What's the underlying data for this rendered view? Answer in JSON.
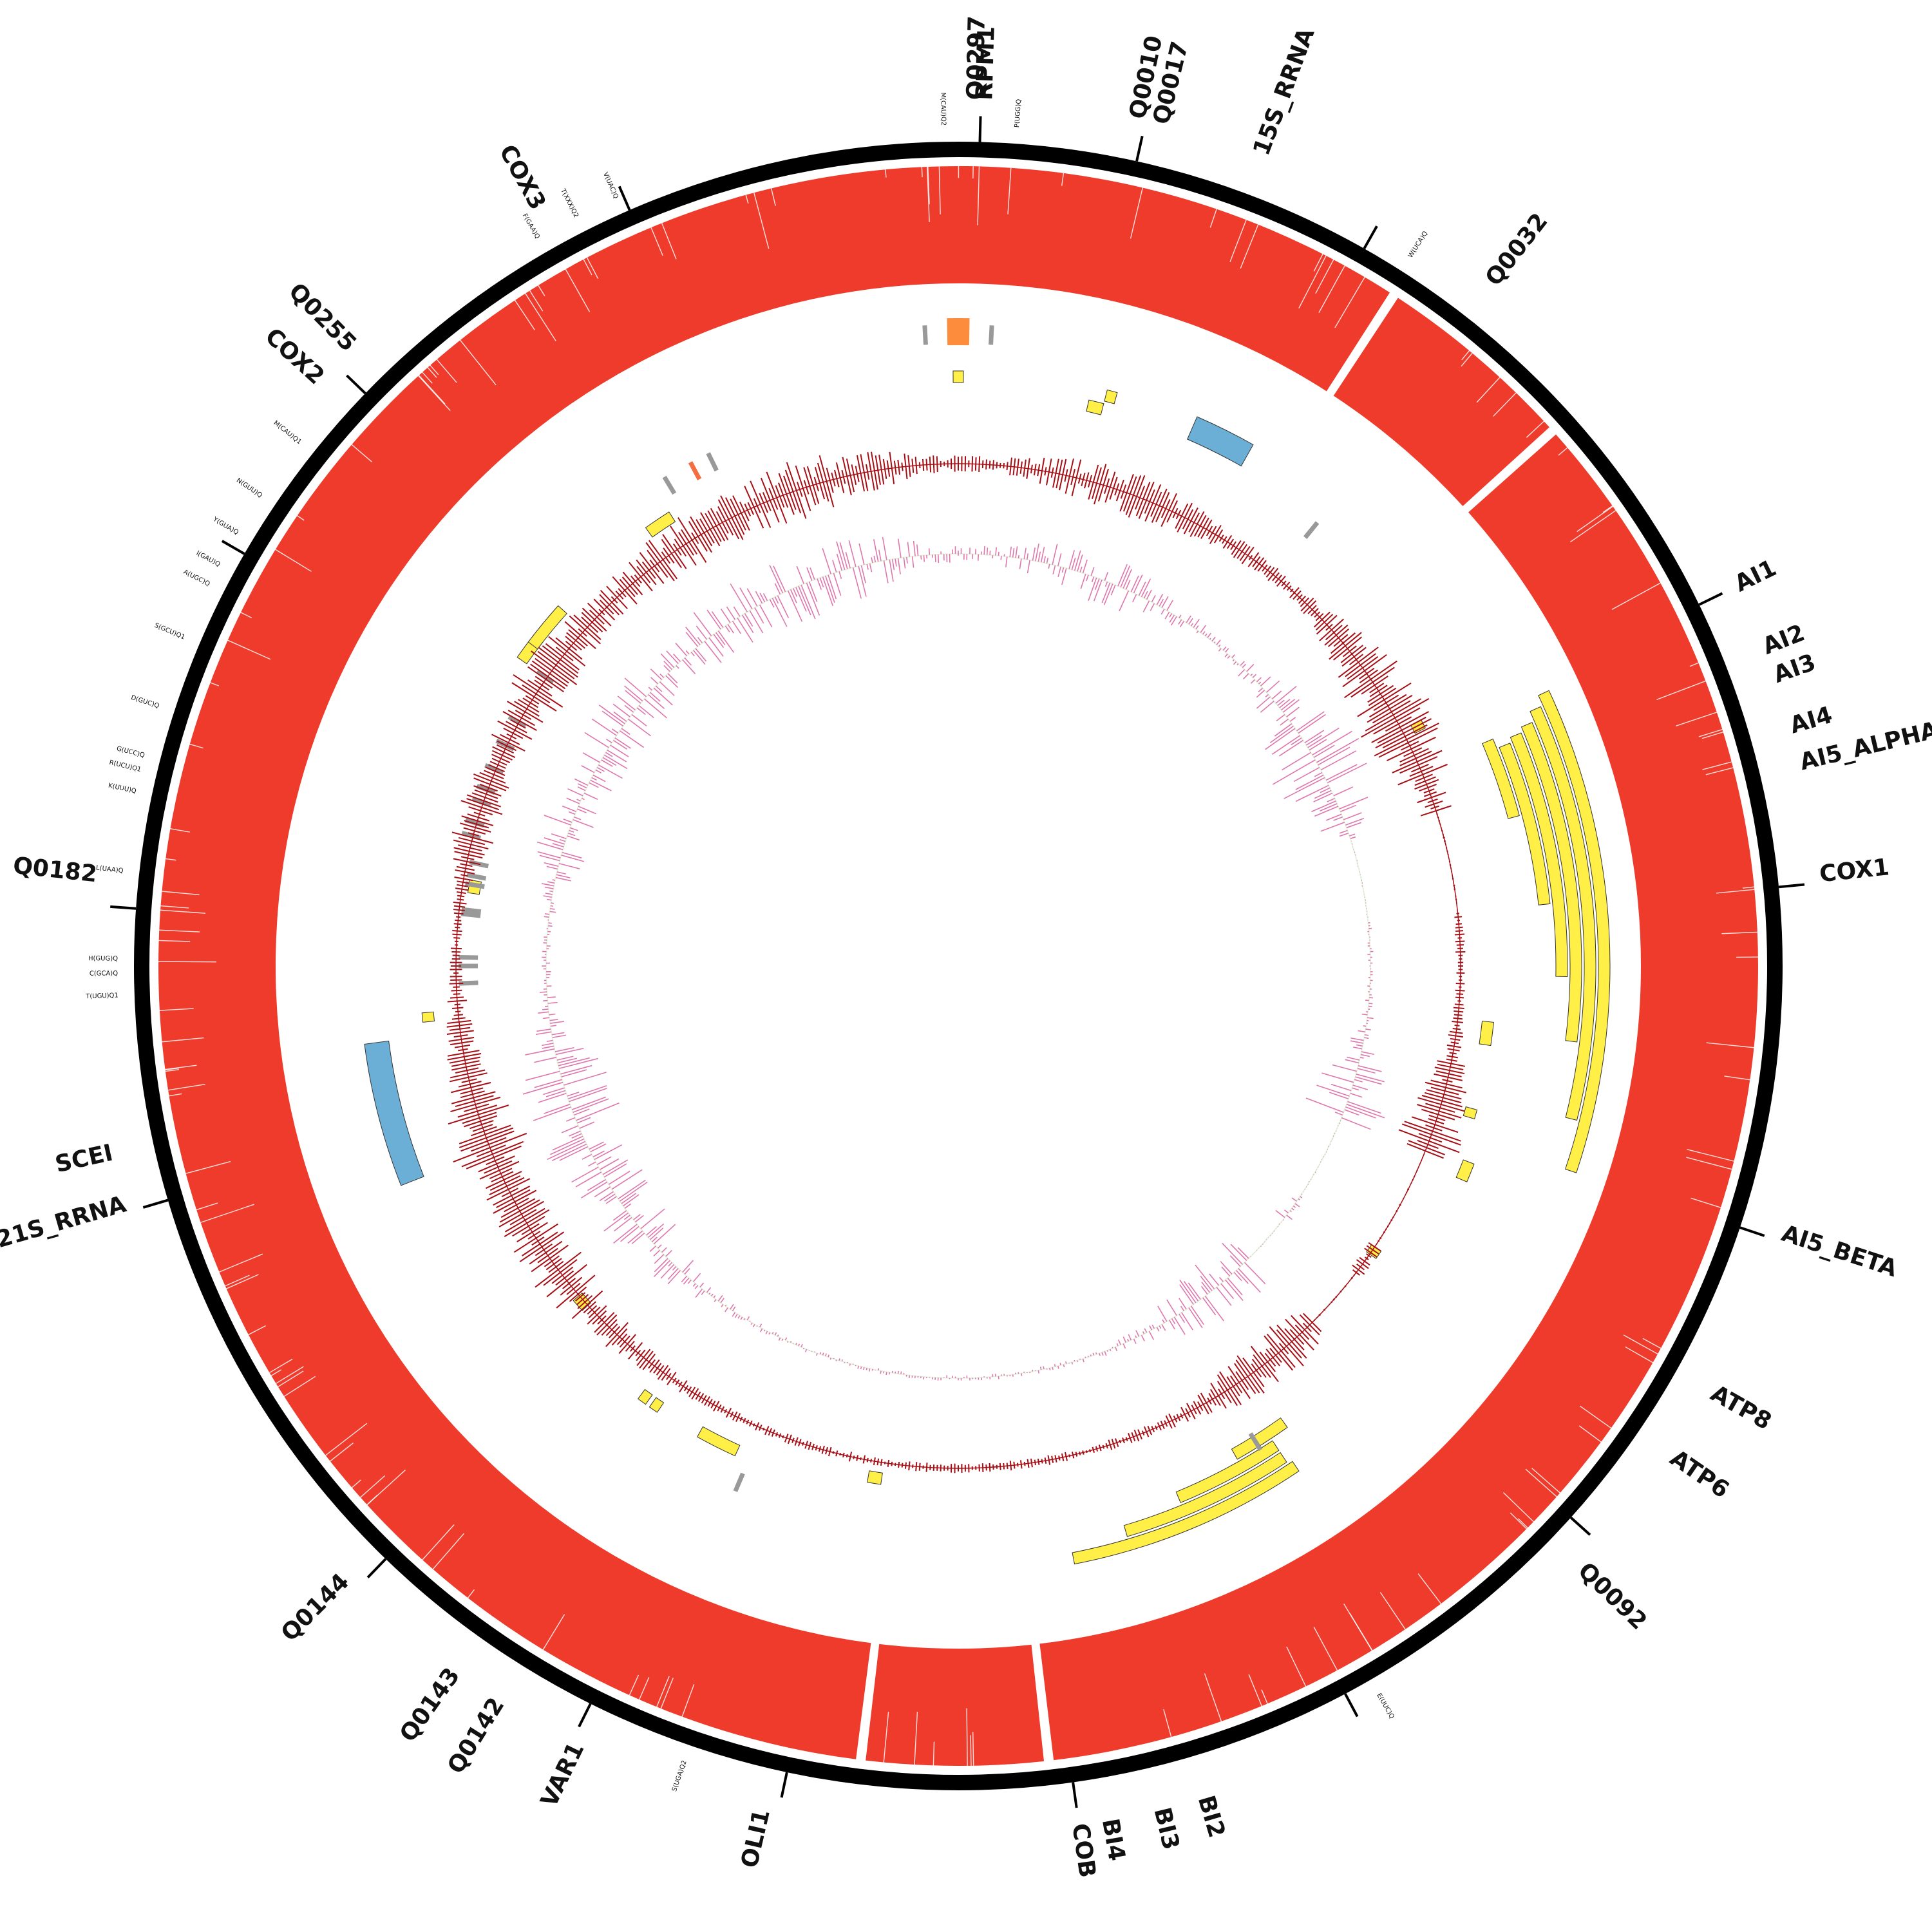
{
  "colors": {
    "backbone": "#000000",
    "coverage": "#ef3b2c",
    "intron": "#ffef47",
    "rrna": "#6baed6",
    "orf_highlight": "#fd8d3c",
    "trna_mark": "#999999",
    "trna_highlight": "#f46d43",
    "gc_skew": "#a50f15",
    "gc_content": "#de77ae",
    "gc_fill": "#e5f5e0"
  },
  "gene_labels": [
    {
      "text": "Q0297",
      "angle": 1.2
    },
    {
      "text": "RPM1",
      "angle": 1.8
    },
    {
      "text": "Q0010",
      "angle": 12.0
    },
    {
      "text": "Q0017",
      "angle": 13.6
    },
    {
      "text": "15S_RRNA",
      "angle": 20.5
    },
    {
      "text": "Q0032",
      "angle": 38.0
    },
    {
      "text": "AI1",
      "angle": 64.0
    },
    {
      "text": "AI2",
      "angle": 68.5
    },
    {
      "text": "AI3",
      "angle": 70.5
    },
    {
      "text": "AI4",
      "angle": 74.0
    },
    {
      "text": "AI5_ALPHA",
      "angle": 76.5
    },
    {
      "text": "COX1",
      "angle": 84.0
    },
    {
      "text": "AI5_BETA",
      "angle": 108.0
    },
    {
      "text": "ATP8",
      "angle": 119.5
    },
    {
      "text": "ATP6",
      "angle": 124.5
    },
    {
      "text": "Q0092",
      "angle": 134.0
    },
    {
      "text": "BI2",
      "angle": 163.5
    },
    {
      "text": "BI3",
      "angle": 166.5
    },
    {
      "text": "BI4",
      "angle": 170.0
    },
    {
      "text": "COB",
      "angle": 172.0
    },
    {
      "text": "OLI1",
      "angle": 193.0
    },
    {
      "text": "VAR1",
      "angle": 206.0
    },
    {
      "text": "Q0142",
      "angle": 212.0
    },
    {
      "text": "Q0143",
      "angle": 215.5
    },
    {
      "text": "Q0144",
      "angle": 225.0
    },
    {
      "text": "21S_RRNA",
      "angle": 254.0
    },
    {
      "text": "SCEI",
      "angle": 257.5
    },
    {
      "text": "Q0182",
      "angle": 276.0
    },
    {
      "text": "COX2",
      "angle": 312.5
    },
    {
      "text": "Q0255",
      "angle": 315.5
    },
    {
      "text": "COX3",
      "angle": 331.0
    }
  ],
  "trna_labels": [
    {
      "text": "M(CAU)Q2",
      "angle": 359.0
    },
    {
      "text": "P(UGG)Q",
      "angle": 4.0
    },
    {
      "text": "W(UCA)Q",
      "angle": 32.5
    },
    {
      "text": "E(UUC)Q",
      "angle": 150.0
    },
    {
      "text": "S(UGA)Q2",
      "angle": 199.0
    },
    {
      "text": "T(UGU)Q1",
      "angle": 268.0
    },
    {
      "text": "C(GCA)Q",
      "angle": 269.5
    },
    {
      "text": "H(GUG)Q",
      "angle": 270.5
    },
    {
      "text": "L(UAA)Q",
      "angle": 276.5
    },
    {
      "text": "K(UUU)Q",
      "angle": 282.0
    },
    {
      "text": "R(UCU)Q1",
      "angle": 283.5
    },
    {
      "text": "G(UCC)Q",
      "angle": 284.5
    },
    {
      "text": "D(GUC)Q",
      "angle": 288.0
    },
    {
      "text": "S(GCU)Q1",
      "angle": 293.0
    },
    {
      "text": "A(UGC)Q",
      "angle": 297.0
    },
    {
      "text": "I(GAU)Q",
      "angle": 298.5
    },
    {
      "text": "Y(GUA)Q",
      "angle": 301.0
    },
    {
      "text": "N(GUU)Q",
      "angle": 304.0
    },
    {
      "text": "M(CAU)Q1",
      "angle": 308.5
    },
    {
      "text": "F(GAA)Q",
      "angle": 330.0
    },
    {
      "text": "T(XXX)Q2",
      "angle": 333.0
    },
    {
      "text": "V(UAC)Q",
      "angle": 336.0
    }
  ],
  "tick_angles": [
    1.5,
    12.5,
    29.5,
    64.0,
    84.5,
    108.5,
    132.0,
    152.0,
    172.0,
    192.0,
    206.5,
    224.0,
    253.5,
    274.0,
    300.0,
    314.0,
    336.5
  ],
  "coverage_gaps": [
    33.0,
    48.0,
    173.5,
    187.0
  ],
  "intron_features": [
    {
      "start": 65.0,
      "end": 108.5,
      "track": 0
    },
    {
      "start": 66.0,
      "end": 104.0,
      "track": 1
    },
    {
      "start": 67.0,
      "end": 97.0,
      "track": 2
    },
    {
      "start": 67.5,
      "end": 91.0,
      "track": 3
    },
    {
      "start": 68.0,
      "end": 84.0,
      "track": 4
    },
    {
      "start": 67.0,
      "end": 75.0,
      "track": 5
    },
    {
      "start": 146.0,
      "end": 169.0,
      "track": 3
    },
    {
      "start": 146.5,
      "end": 163.5,
      "track": 4
    },
    {
      "start": 146.5,
      "end": 157.5,
      "track": 5
    },
    {
      "start": 144.5,
      "end": 150.5,
      "track": 6
    },
    {
      "start": 62.0,
      "end": 63.0,
      "track": 9
    },
    {
      "start": 96.0,
      "end": 98.5,
      "track": 8
    },
    {
      "start": 105.5,
      "end": 106.5,
      "track": 8
    },
    {
      "start": 111.0,
      "end": 113.0,
      "track": 7
    },
    {
      "start": 124.0,
      "end": 125.0,
      "track": 10
    },
    {
      "start": 188.5,
      "end": 190.0,
      "track": 9
    },
    {
      "start": 204.5,
      "end": 209.0,
      "track": 8
    },
    {
      "start": 214.0,
      "end": 215.0,
      "track": 8
    },
    {
      "start": 215.5,
      "end": 216.5,
      "track": 8
    },
    {
      "start": 227.5,
      "end": 229.0,
      "track": 10
    },
    {
      "start": 264.0,
      "end": 265.0,
      "track": 8
    },
    {
      "start": 278.5,
      "end": 280.0,
      "track": 11
    },
    {
      "start": 305.0,
      "end": 308.0,
      "track": 8
    },
    {
      "start": 307.0,
      "end": 312.0,
      "track": 8
    },
    {
      "start": 324.5,
      "end": 327.5,
      "track": 8
    },
    {
      "start": 359.5,
      "end": 0.5,
      "track": 4
    },
    {
      "start": 13.0,
      "end": 14.5,
      "track": 5
    },
    {
      "start": 14.5,
      "end": 15.5,
      "track": 4
    }
  ],
  "rrna_features": [
    {
      "start": 23.5,
      "end": 29.5,
      "track": 4
    },
    {
      "start": 248.5,
      "end": 262.5,
      "track": 4
    }
  ],
  "orf_features": [
    {
      "start": 359.0,
      "end": 1.0,
      "track": 1
    }
  ],
  "trna_marks": [
    {
      "angle": 357.0,
      "track": 1,
      "highlight": false
    },
    {
      "angle": 3.0,
      "track": 1,
      "highlight": false
    },
    {
      "angle": 39.0,
      "track": 6,
      "highlight": false
    },
    {
      "angle": 329.0,
      "track": 6,
      "highlight": false
    },
    {
      "angle": 332.0,
      "track": 6,
      "highlight": true
    },
    {
      "angle": 334.0,
      "track": 6,
      "highlight": false
    },
    {
      "angle": 305.0,
      "track": 10,
      "highlight": false
    },
    {
      "angle": 299.0,
      "track": 10,
      "highlight": false
    },
    {
      "angle": 296.0,
      "track": 10,
      "highlight": false
    },
    {
      "angle": 293.0,
      "track": 10,
      "highlight": false
    },
    {
      "angle": 290.5,
      "track": 10,
      "highlight": false
    },
    {
      "angle": 289.0,
      "track": 10,
      "highlight": false
    },
    {
      "angle": 286.5,
      "track": 10,
      "highlight": false
    },
    {
      "angle": 285.0,
      "track": 10,
      "highlight": false
    },
    {
      "angle": 282.0,
      "track": 11,
      "highlight": false
    },
    {
      "angle": 280.5,
      "track": 11,
      "highlight": false
    },
    {
      "angle": 279.5,
      "track": 11,
      "highlight": false
    },
    {
      "angle": 276.5,
      "track": 11,
      "highlight": false
    },
    {
      "angle": 276.0,
      "track": 11,
      "highlight": false
    },
    {
      "angle": 271.0,
      "track": 11,
      "highlight": false
    },
    {
      "angle": 270.0,
      "track": 11,
      "highlight": false
    },
    {
      "angle": 268.0,
      "track": 11,
      "highlight": false
    },
    {
      "angle": 148.0,
      "track": 6,
      "highlight": false
    },
    {
      "angle": 203.0,
      "track": 6,
      "highlight": false
    }
  ],
  "gc_bursts": [
    {
      "center": 330,
      "spread": 12,
      "amp": 45
    },
    {
      "center": 305,
      "spread": 8,
      "amp": 50
    },
    {
      "center": 288,
      "spread": 5,
      "amp": 40
    },
    {
      "center": 250,
      "spread": 8,
      "amp": 70
    },
    {
      "center": 235,
      "spread": 10,
      "amp": 50
    },
    {
      "center": 60,
      "spread": 8,
      "amp": 70
    },
    {
      "center": 110,
      "spread": 6,
      "amp": 55
    },
    {
      "center": 140,
      "spread": 8,
      "amp": 45
    },
    {
      "center": 20,
      "spread": 10,
      "amp": 35
    },
    {
      "center": 340,
      "spread": 10,
      "amp": 50
    }
  ],
  "gc_quiet": [
    {
      "start": 72,
      "end": 84
    },
    {
      "start": 112,
      "end": 124
    },
    {
      "start": 128,
      "end": 135
    }
  ]
}
